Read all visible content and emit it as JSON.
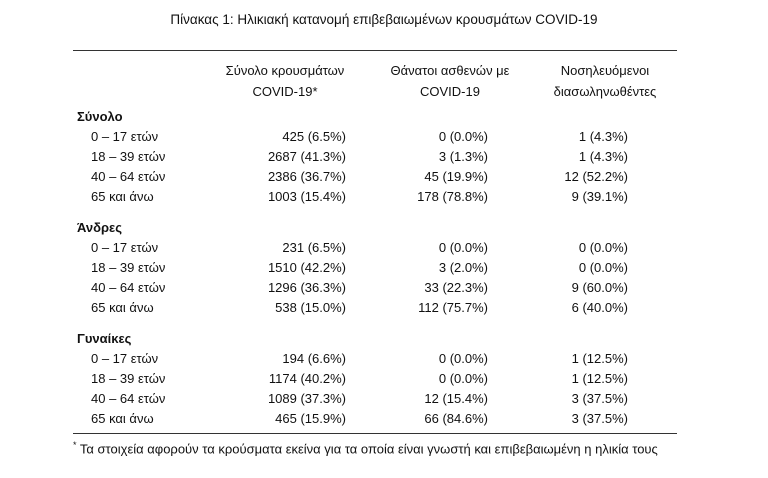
{
  "title": "Πίνακας 1: Ηλικιακή κατανομή επιβεβαιωμένων κρουσμάτων COVID-19",
  "headers": [
    {
      "line1": "Σύνολο κρουσμάτων",
      "line2": "COVID-19*"
    },
    {
      "line1": "Θάνατοι ασθενών με",
      "line2": "COVID-19"
    },
    {
      "line1": "Νοσηλευόμενοι",
      "line2": "διασωληνωθέντες"
    }
  ],
  "groups": [
    {
      "name": "Σύνολο",
      "rows": [
        {
          "age": "0 – 17 ετών",
          "cases": "425 (6.5%)",
          "deaths": "0 (0.0%)",
          "intubated": "1 (4.3%)"
        },
        {
          "age": "18 – 39 ετών",
          "cases": "2687 (41.3%)",
          "deaths": "3 (1.3%)",
          "intubated": "1 (4.3%)"
        },
        {
          "age": "40 – 64 ετών",
          "cases": "2386 (36.7%)",
          "deaths": "45 (19.9%)",
          "intubated": "12 (52.2%)"
        },
        {
          "age": "65 και άνω",
          "cases": "1003 (15.4%)",
          "deaths": "178 (78.8%)",
          "intubated": "9 (39.1%)"
        }
      ]
    },
    {
      "name": "Άνδρες",
      "rows": [
        {
          "age": "0 – 17 ετών",
          "cases": "231 (6.5%)",
          "deaths": "0 (0.0%)",
          "intubated": "0 (0.0%)"
        },
        {
          "age": "18 – 39 ετών",
          "cases": "1510 (42.2%)",
          "deaths": "3 (2.0%)",
          "intubated": "0 (0.0%)"
        },
        {
          "age": "40 – 64 ετών",
          "cases": "1296 (36.3%)",
          "deaths": "33 (22.3%)",
          "intubated": "9 (60.0%)"
        },
        {
          "age": "65 και άνω",
          "cases": "538 (15.0%)",
          "deaths": "112 (75.7%)",
          "intubated": "6 (40.0%)"
        }
      ]
    },
    {
      "name": "Γυναίκες",
      "rows": [
        {
          "age": "0 – 17 ετών",
          "cases": "194 (6.6%)",
          "deaths": "0 (0.0%)",
          "intubated": "1 (12.5%)"
        },
        {
          "age": "18 – 39 ετών",
          "cases": "1174 (40.2%)",
          "deaths": "0 (0.0%)",
          "intubated": "1 (12.5%)"
        },
        {
          "age": "40 – 64 ετών",
          "cases": "1089 (37.3%)",
          "deaths": "12 (15.4%)",
          "intubated": "3 (37.5%)"
        },
        {
          "age": "65 και άνω",
          "cases": "465 (15.9%)",
          "deaths": "66 (84.6%)",
          "intubated": "3 (37.5%)"
        }
      ]
    }
  ],
  "footnote": {
    "marker": "*",
    "text": " Τα στοιχεία αφορούν τα κρούσματα εκείνα για τα οποία είναι γνωστή και επιβεβαιωμένη η ηλικία τους"
  }
}
